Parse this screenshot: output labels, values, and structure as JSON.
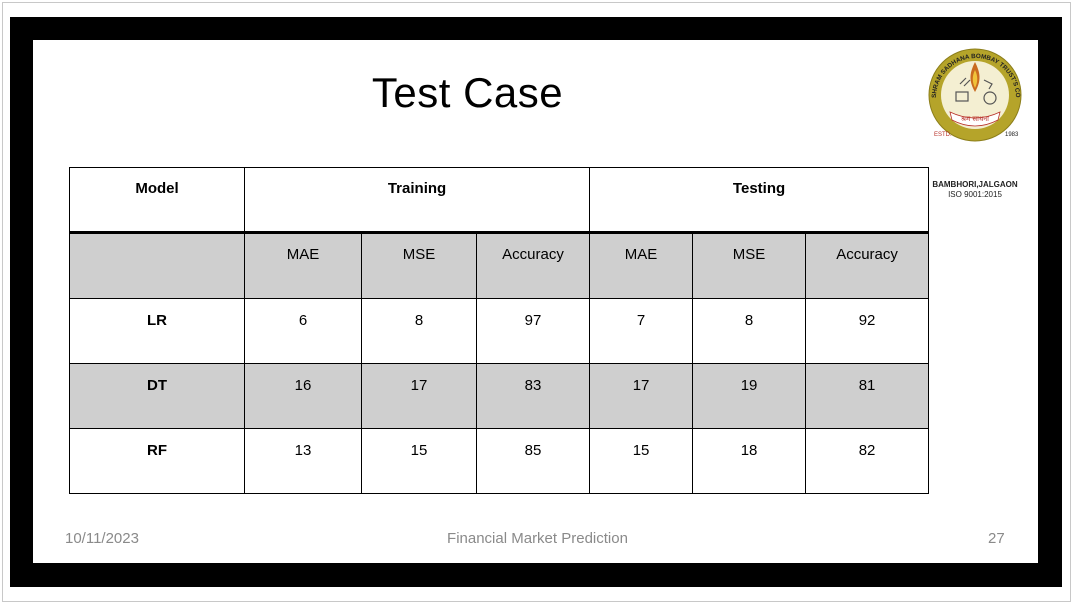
{
  "slide": {
    "title": "Test Case",
    "footer": {
      "date": "10/11/2023",
      "center": "Financial Market Prediction",
      "page": "27"
    },
    "logo": {
      "ring_text": "SHRAM SADHANA BOMBAY TRUST'S COLLEGE OF ENGINEERING AND TECHNOLOGY",
      "motto": "श्रम साधना",
      "estd": "ESTD.",
      "year": "1983",
      "location": "BAMBHORI,JALGAON",
      "iso": "ISO 9001:2015"
    }
  },
  "table": {
    "headers": {
      "model": "Model",
      "training": "Training",
      "testing": "Testing"
    },
    "subheaders": [
      "MAE",
      "MSE",
      "Accuracy",
      "MAE",
      "MSE",
      "Accuracy"
    ],
    "rows": [
      {
        "model": "LR",
        "values": [
          "6",
          "8",
          "97",
          "7",
          "8",
          "92"
        ]
      },
      {
        "model": "DT",
        "values": [
          "16",
          "17",
          "83",
          "17",
          "19",
          "81"
        ]
      },
      {
        "model": "RF",
        "values": [
          "13",
          "15",
          "85",
          "15",
          "18",
          "82"
        ]
      }
    ]
  },
  "colors": {
    "frame": "#000000",
    "shade": "#cfcfcf",
    "footer_text": "#8a8a8a",
    "logo_gold": "#b5a42a",
    "logo_red": "#b8322a"
  }
}
